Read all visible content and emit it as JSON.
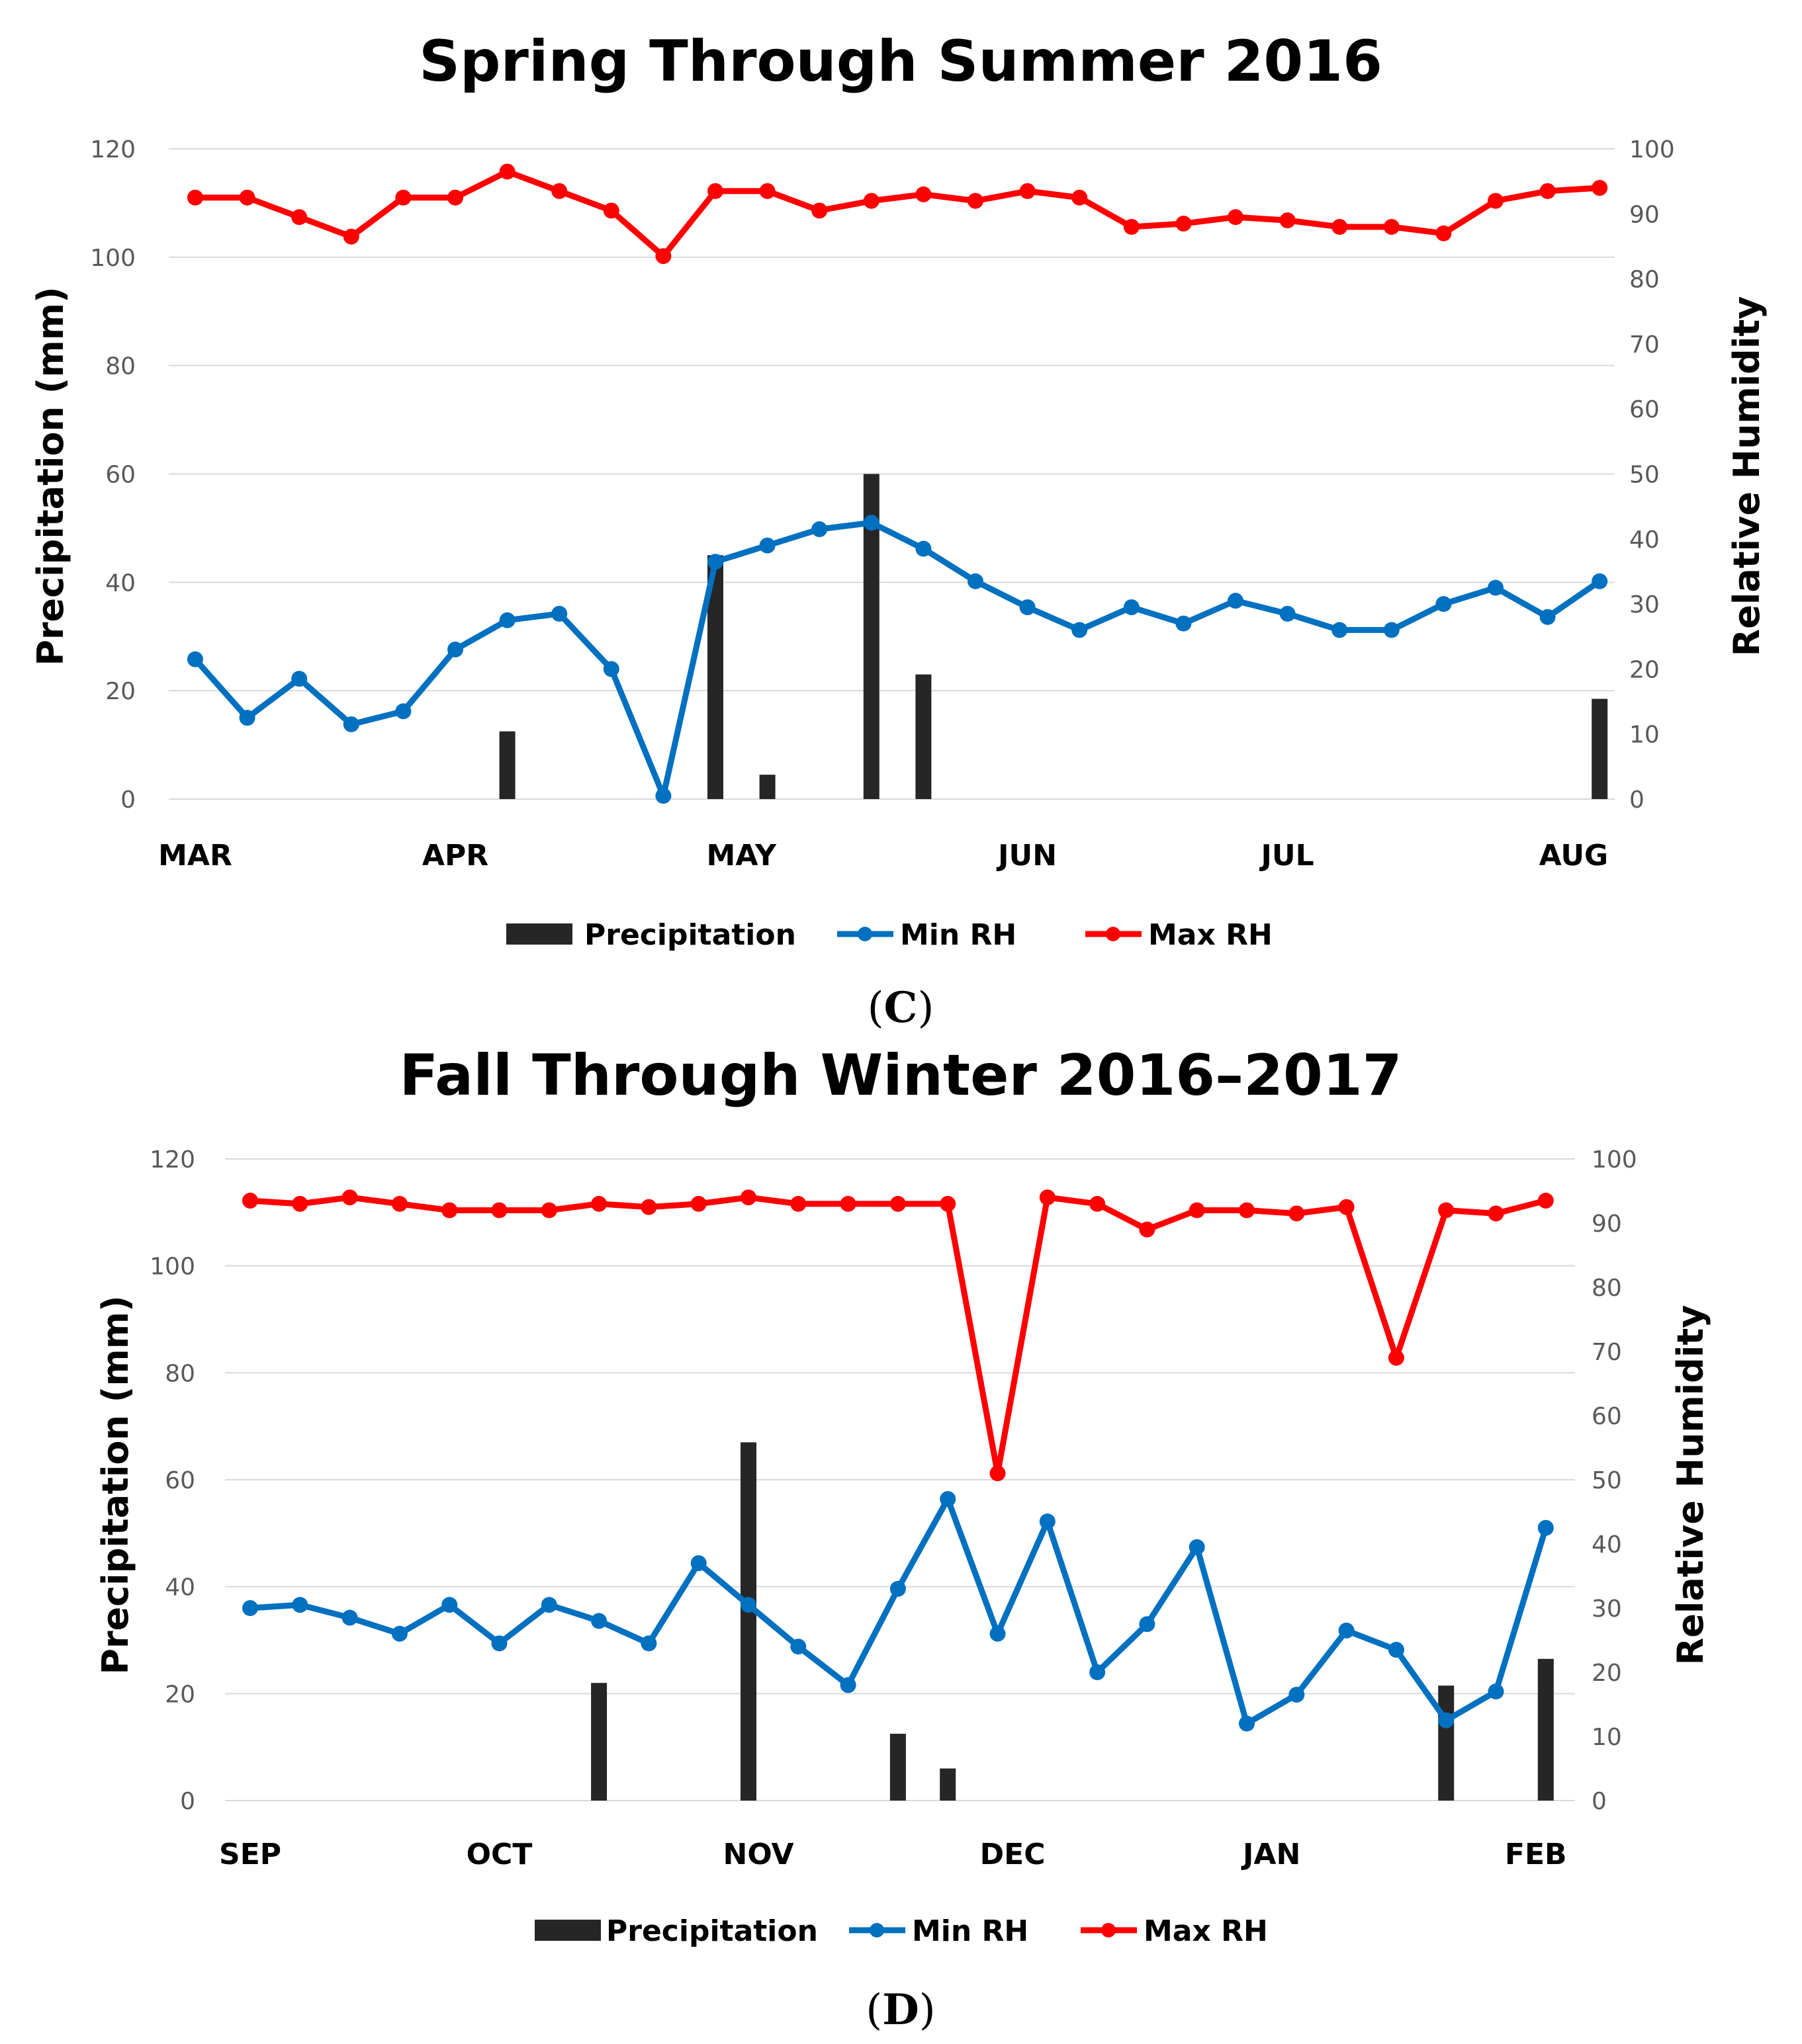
{
  "legend": {
    "precip": "Precipitation",
    "min_rh": "Min RH",
    "max_rh": "Max RH"
  },
  "colors": {
    "precip": "#262626",
    "min_rh": "#0070C0",
    "max_rh": "#FF0000",
    "grid": "#D9D9D9"
  },
  "chart_data": [
    {
      "type": "bar+line",
      "title": "Spring Through Summer 2016",
      "panel_label": "(C)",
      "panel_letter": "C",
      "ylabel": "Precipitation (mm)",
      "y2label": "Relative Humidity",
      "ylim": [
        0,
        120
      ],
      "yticks": [
        0,
        20,
        40,
        60,
        80,
        100,
        120
      ],
      "y2lim": [
        0,
        100
      ],
      "y2ticks": [
        0,
        10,
        20,
        30,
        40,
        50,
        60,
        70,
        80,
        90,
        100
      ],
      "months": [
        "MAR",
        "APR",
        "MAY",
        "JUN",
        "JUL",
        "AUG"
      ],
      "month_index": [
        0,
        5,
        10.5,
        16,
        21,
        26.5
      ],
      "points": 28,
      "series": [
        {
          "name": "Min RH",
          "axis": "y2",
          "values": [
            21.5,
            12.5,
            18.5,
            11.5,
            13.5,
            23,
            27.5,
            28.5,
            20,
            0.5,
            36.5,
            39,
            41.5,
            42.5,
            38.5,
            33.5,
            29.5,
            26,
            29.5,
            27,
            30.5,
            28.5,
            26,
            26,
            30,
            32.5,
            28,
            33.5
          ]
        },
        {
          "name": "Max RH",
          "axis": "y2",
          "values": [
            92.5,
            92.5,
            89.5,
            86.5,
            92.5,
            92.5,
            96.5,
            93.5,
            90.5,
            83.5,
            93.5,
            93.5,
            90.5,
            92,
            93,
            92,
            93.5,
            92.5,
            88,
            88.5,
            89.5,
            89,
            88,
            88,
            87,
            92,
            93.5,
            94
          ]
        }
      ],
      "precipitation": [
        {
          "index": 6,
          "value": 12.5
        },
        {
          "index": 10,
          "value": 45
        },
        {
          "index": 11,
          "value": 4.5
        },
        {
          "index": 13,
          "value": 60
        },
        {
          "index": 14,
          "value": 23
        },
        {
          "index": 27,
          "value": 18.5
        }
      ]
    },
    {
      "type": "bar+line",
      "title": "Fall Through Winter 2016–2017",
      "panel_label": "(D)",
      "panel_letter": "D",
      "ylabel": "Precipitation (mm)",
      "y2label": "Relative Humidity",
      "ylim": [
        0,
        120
      ],
      "yticks": [
        0,
        20,
        40,
        60,
        80,
        100,
        120
      ],
      "y2lim": [
        0,
        100
      ],
      "y2ticks": [
        0,
        10,
        20,
        30,
        40,
        50,
        60,
        70,
        80,
        90,
        100
      ],
      "months": [
        "SEP",
        "OCT",
        "NOV",
        "DEC",
        "JAN",
        "FEB"
      ],
      "month_index": [
        0,
        5,
        10.2,
        15.3,
        20.5,
        25.8
      ],
      "points": 27,
      "series": [
        {
          "name": "Min RH",
          "axis": "y2",
          "values": [
            30,
            30.5,
            28.5,
            26,
            30.5,
            24.5,
            30.5,
            28,
            24.5,
            37,
            30.5,
            24,
            18,
            33,
            47,
            26,
            43.5,
            20,
            27.5,
            39.5,
            12,
            16.5,
            26.5,
            23.5,
            12.5,
            17,
            42.5
          ]
        },
        {
          "name": "Max RH",
          "axis": "y2",
          "values": [
            93.5,
            93,
            94,
            93,
            92,
            92,
            92,
            93,
            92.5,
            93,
            94,
            93,
            93,
            93,
            93,
            51,
            94,
            93,
            89,
            92,
            92,
            91.5,
            92.5,
            69,
            92,
            91.5,
            93.5
          ]
        }
      ],
      "precipitation": [
        {
          "index": 7,
          "value": 22
        },
        {
          "index": 10,
          "value": 67
        },
        {
          "index": 13,
          "value": 12.5
        },
        {
          "index": 14,
          "value": 6
        },
        {
          "index": 24,
          "value": 21.5
        },
        {
          "index": 26,
          "value": 26.5
        }
      ]
    }
  ]
}
